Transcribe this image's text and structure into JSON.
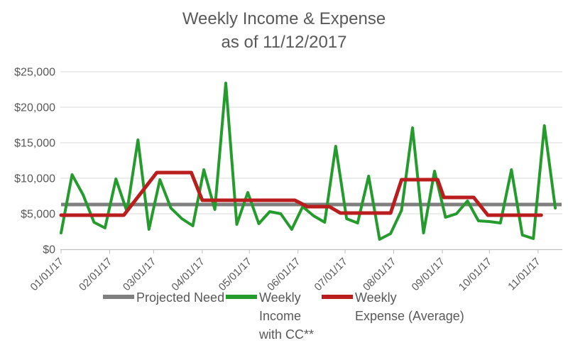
{
  "title": {
    "line1": "Weekly Income & Expense",
    "line2": "as of 11/12/2017"
  },
  "legend": {
    "items": [
      {
        "name": "Projected Need",
        "color": "#7f7f7f",
        "label_lines": [
          "Projected Need"
        ]
      },
      {
        "name": "Weekly Income with CC**",
        "color": "#259b2e",
        "label_lines": [
          "Weekly",
          "Income",
          "with CC**"
        ]
      },
      {
        "name": "Weekly Expense (Average)",
        "color": "#b91d1d",
        "label_lines": [
          "Weekly",
          "Expense (Average)"
        ]
      }
    ]
  },
  "chart_data": {
    "type": "line",
    "title": "Weekly Income & Expense as of 11/12/2017",
    "grid": true,
    "legend_position": "bottom",
    "text_color": "#595959",
    "gridline_color": "#d9d9d9",
    "axis_color": "#bfbfbf",
    "y_axis": {
      "range": [
        0,
        25000
      ],
      "tick_values": [
        0,
        5000,
        10000,
        15000,
        20000,
        25000
      ],
      "tick_labels": [
        "$0",
        "$5,000",
        "$10,000",
        "$15,000",
        "$20,000",
        "$25,000"
      ]
    },
    "x_axis": {
      "tick_labels": [
        "01/01/17",
        "02/01/17",
        "03/01/17",
        "04/01/17",
        "05/01/17",
        "06/01/17",
        "07/01/17",
        "08/01/17",
        "09/01/17",
        "10/01/17",
        "11/01/17"
      ],
      "tick_days": [
        0,
        31,
        59,
        90,
        120,
        151,
        181,
        212,
        243,
        273,
        304
      ],
      "day_span": 319
    },
    "series": [
      {
        "name": "Projected Need",
        "color": "#7f7f7f",
        "style": "constant",
        "value": 6300,
        "day_start": 0,
        "day_end": 319
      },
      {
        "name": "Weekly Income with CC**",
        "color": "#259b2e",
        "style": "weekly",
        "dates": [
          "01/01/17",
          "01/08/17",
          "01/15/17",
          "01/22/17",
          "01/29/17",
          "02/05/17",
          "02/12/17",
          "02/19/17",
          "02/26/17",
          "03/05/17",
          "03/12/17",
          "03/19/17",
          "03/26/17",
          "04/02/17",
          "04/09/17",
          "04/16/17",
          "04/23/17",
          "04/30/17",
          "05/07/17",
          "05/14/17",
          "05/21/17",
          "05/28/17",
          "06/04/17",
          "06/11/17",
          "06/18/17",
          "06/25/17",
          "07/02/17",
          "07/09/17",
          "07/16/17",
          "07/23/17",
          "07/30/17",
          "08/06/17",
          "08/13/17",
          "08/20/17",
          "08/27/17",
          "09/03/17",
          "09/10/17",
          "09/17/17",
          "09/24/17",
          "10/01/17",
          "10/08/17",
          "10/15/17",
          "10/22/17",
          "10/29/17",
          "11/05/17",
          "11/12/17"
        ],
        "values": [
          2300,
          10500,
          7700,
          3800,
          3000,
          9900,
          5300,
          15400,
          2800,
          9800,
          5800,
          4300,
          3300,
          11200,
          5600,
          23400,
          3500,
          8000,
          3600,
          5300,
          5000,
          2800,
          6000,
          4700,
          3800,
          14500,
          4300,
          3700,
          10300,
          1400,
          2200,
          5500,
          17100,
          2300,
          11000,
          4500,
          5000,
          6800,
          4000,
          3900,
          3700,
          11200,
          2000,
          1500,
          17400,
          5800
        ]
      },
      {
        "name": "Weekly Expense (Average)",
        "color": "#b91d1d",
        "style": "steps",
        "points": [
          [
            0,
            4800
          ],
          [
            40,
            4800
          ],
          [
            61,
            10800
          ],
          [
            83,
            10800
          ],
          [
            90,
            6900
          ],
          [
            149,
            6900
          ],
          [
            157,
            6000
          ],
          [
            171,
            6000
          ],
          [
            178,
            5100
          ],
          [
            210,
            5100
          ],
          [
            217,
            9800
          ],
          [
            240,
            9800
          ],
          [
            244,
            7300
          ],
          [
            263,
            7300
          ],
          [
            272,
            4800
          ],
          [
            306,
            4800
          ]
        ]
      }
    ]
  }
}
